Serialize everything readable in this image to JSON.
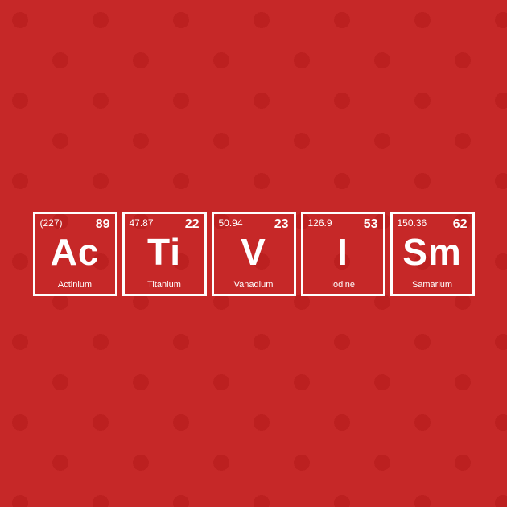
{
  "background_color": "#c62828",
  "pattern_color": "#b71c1c",
  "border_color": "#ffffff",
  "text_color": "#ffffff",
  "tile_size": 105,
  "tile_border_width": 3,
  "tile_gap": 6,
  "font_family": "Arial, Helvetica, sans-serif",
  "symbol_fontsize": 46,
  "number_fontsize": 16,
  "mass_fontsize": 12,
  "name_fontsize": 11,
  "elements": [
    {
      "mass": "(227)",
      "number": "89",
      "symbol": "Ac",
      "name": "Actinium"
    },
    {
      "mass": "47.87",
      "number": "22",
      "symbol": "Ti",
      "name": "Titanium"
    },
    {
      "mass": "50.94",
      "number": "23",
      "symbol": "V",
      "name": "Vanadium"
    },
    {
      "mass": "126.9",
      "number": "53",
      "symbol": "I",
      "name": "Iodine"
    },
    {
      "mass": "150.36",
      "number": "62",
      "symbol": "Sm",
      "name": "Samarium"
    }
  ]
}
